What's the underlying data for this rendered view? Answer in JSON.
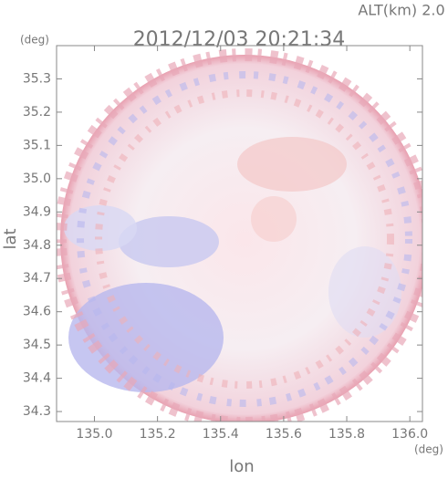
{
  "chart_data": {
    "type": "radar-image",
    "title": "2012/12/03 20:21:34",
    "subtitle": "ALT(km) 2.0",
    "x_label": "lon",
    "y_label": "lat",
    "x_unit": "(deg)",
    "y_unit": "(deg)",
    "xlim": [
      134.88,
      136.04
    ],
    "xticks": [
      {
        "value": 135.0,
        "label": "135.0"
      },
      135.2,
      135.4,
      135.6,
      135.8,
      {
        "value": 136.0,
        "label": "136.0"
      }
    ],
    "ylim": [
      34.27,
      35.4
    ],
    "yticks": [
      35.3,
      35.2,
      35.1,
      {
        "value": 35.0,
        "label": "35.0"
      },
      34.9,
      34.8,
      34.7,
      34.6,
      34.5,
      34.4,
      34.3
    ]
  }
}
